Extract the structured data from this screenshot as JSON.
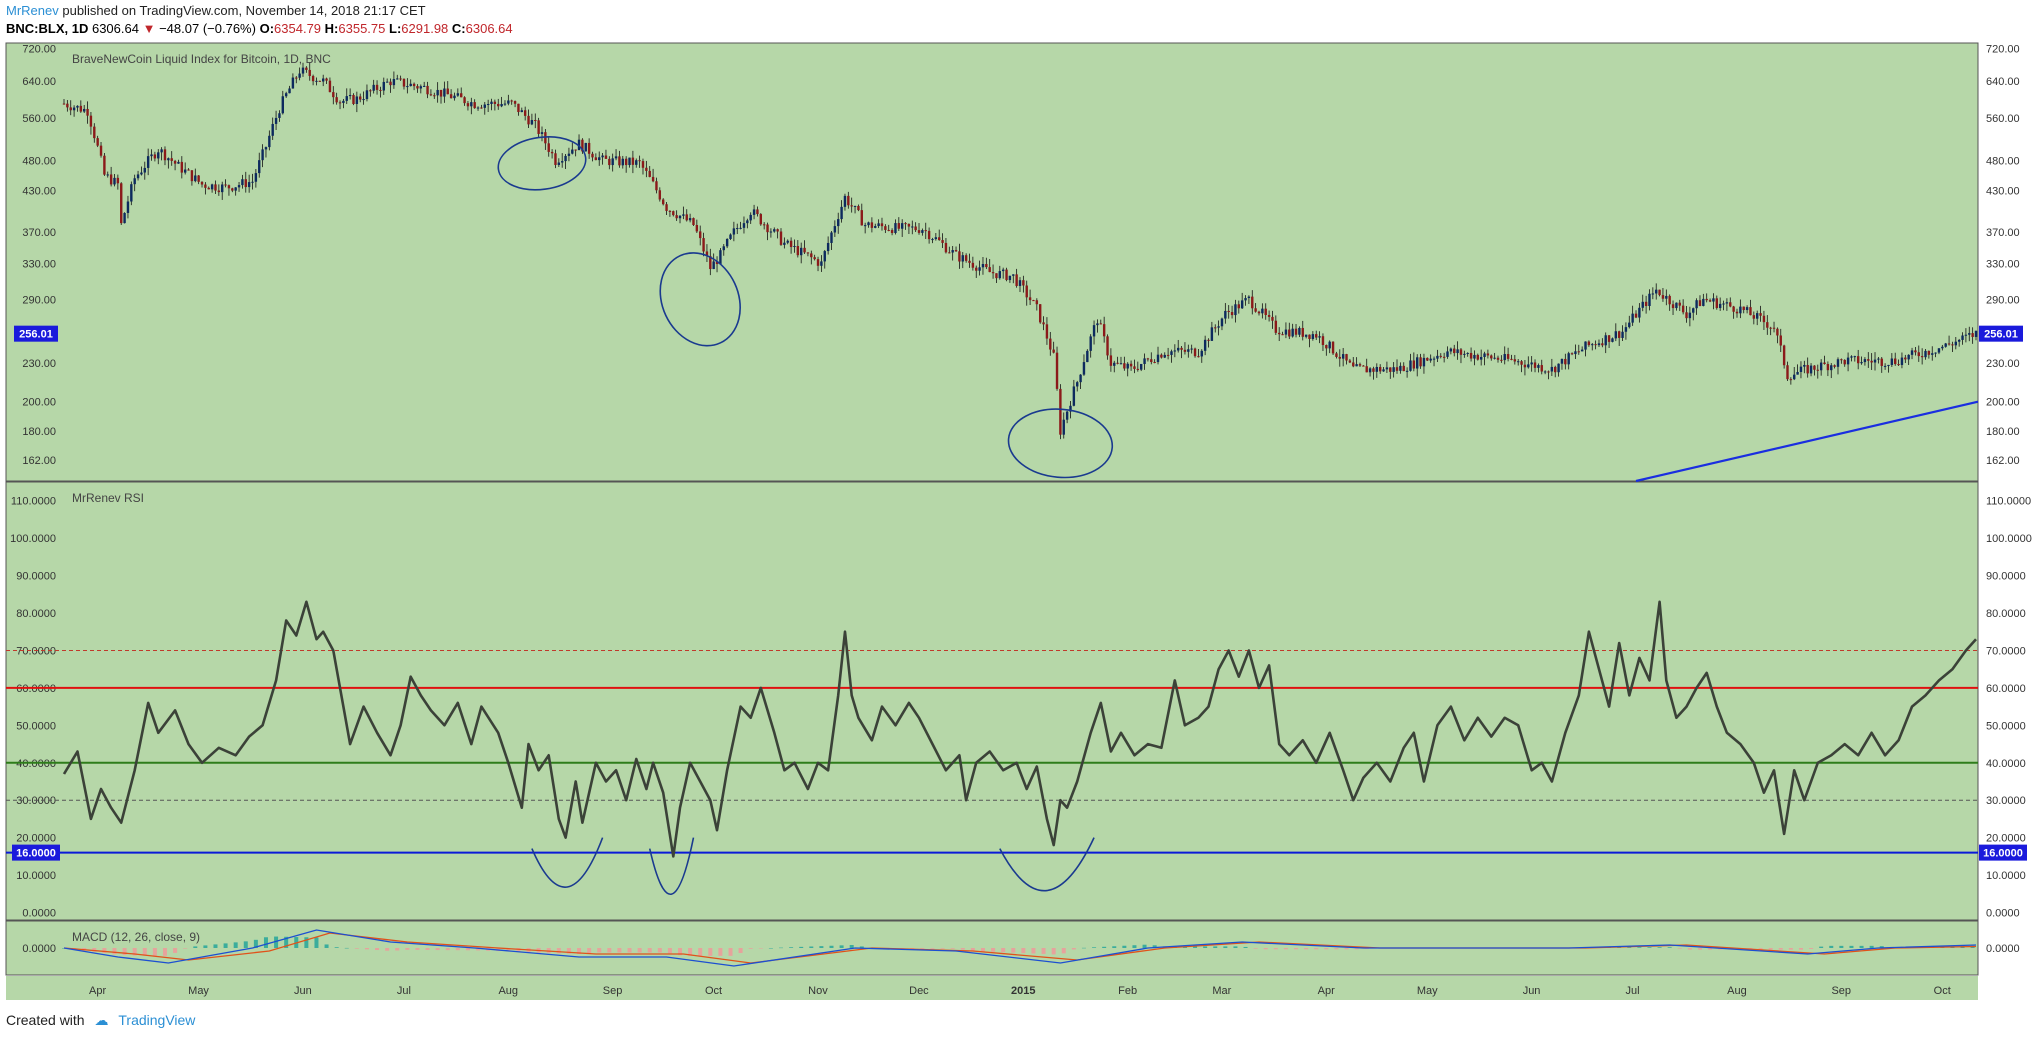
{
  "header": {
    "author": "MrRenev",
    "published": " published on TradingView.com, November 14, 2018 21:17 CET",
    "symbol": "BNC:BLX, 1D",
    "last": "6306.64",
    "change": "−48.07 (−0.76%)",
    "o_label": "O:",
    "o_value": "6354.79",
    "h_label": "H:",
    "h_value": "6355.75",
    "l_label": "L:",
    "l_value": "6291.98",
    "c_label": "C:",
    "c_value": "6306.64"
  },
  "footer": {
    "created": "Created with",
    "brand": "TradingView"
  },
  "colors": {
    "background": "#b6d7a8",
    "candle_up": "#0d2a5e",
    "candle_down": "#8b1a1a",
    "rsi_line": "#3b4238",
    "level_red": "#e01010",
    "level_green": "#2e7d1a",
    "level_blue": "#0a1ad8",
    "annotation": "#1a3a8f",
    "macd_line": "#1c4fd1",
    "signal_line": "#e0521a"
  },
  "chart_data": [
    {
      "type": "candlestick",
      "title": "BraveNewCoin Liquid Index for Bitcoin, 1D, BNC",
      "scale": "log",
      "ylim": [
        150,
        735
      ],
      "y_ticks": [
        "720.00",
        "640.00",
        "560.00",
        "480.00",
        "430.00",
        "370.00",
        "330.00",
        "290.00",
        "230.00",
        "200.00",
        "180.00",
        "162.00"
      ],
      "price_tag": "256.01",
      "x_ticks": [
        "Apr",
        "May",
        "Jun",
        "Jul",
        "Aug",
        "Sep",
        "Oct",
        "Nov",
        "Dec",
        "2015",
        "Feb",
        "Mar",
        "Apr",
        "May",
        "Jun",
        "Jul",
        "Aug",
        "Sep",
        "Oct"
      ],
      "x_date_range": [
        "2014-03-25",
        "2015-10-14"
      ],
      "close_path": [
        [
          "2014-03-25",
          590
        ],
        [
          "2014-04-01",
          575
        ],
        [
          "2014-04-06",
          455
        ],
        [
          "2014-04-10",
          440
        ],
        [
          "2014-04-11",
          380
        ],
        [
          "2014-04-15",
          450
        ],
        [
          "2014-04-22",
          500
        ],
        [
          "2014-04-28",
          470
        ],
        [
          "2014-05-05",
          440
        ],
        [
          "2014-05-12",
          435
        ],
        [
          "2014-05-20",
          445
        ],
        [
          "2014-05-24",
          505
        ],
        [
          "2014-05-28",
          580
        ],
        [
          "2014-06-03",
          665
        ],
        [
          "2014-06-10",
          640
        ],
        [
          "2014-06-15",
          595
        ],
        [
          "2014-06-20",
          600
        ],
        [
          "2014-06-30",
          640
        ],
        [
          "2014-07-10",
          625
        ],
        [
          "2014-07-25",
          590
        ],
        [
          "2014-08-05",
          590
        ],
        [
          "2014-08-12",
          545
        ],
        [
          "2014-08-18",
          480
        ],
        [
          "2014-08-25",
          510
        ],
        [
          "2014-09-01",
          480
        ],
        [
          "2014-09-12",
          475
        ],
        [
          "2014-09-20",
          405
        ],
        [
          "2014-09-28",
          380
        ],
        [
          "2014-10-03",
          325
        ],
        [
          "2014-10-06",
          340
        ],
        [
          "2014-10-10",
          370
        ],
        [
          "2014-10-15",
          400
        ],
        [
          "2014-10-25",
          355
        ],
        [
          "2014-11-05",
          330
        ],
        [
          "2014-11-12",
          420
        ],
        [
          "2014-11-18",
          380
        ],
        [
          "2014-11-28",
          375
        ],
        [
          "2014-12-05",
          375
        ],
        [
          "2014-12-15",
          340
        ],
        [
          "2014-12-25",
          320
        ],
        [
          "2015-01-01",
          315
        ],
        [
          "2015-01-08",
          280
        ],
        [
          "2015-01-13",
          235
        ],
        [
          "2015-01-15",
          180
        ],
        [
          "2015-01-20",
          215
        ],
        [
          "2015-01-26",
          270
        ],
        [
          "2015-01-30",
          230
        ],
        [
          "2015-02-05",
          225
        ],
        [
          "2015-02-15",
          240
        ],
        [
          "2015-02-25",
          240
        ],
        [
          "2015-03-05",
          275
        ],
        [
          "2015-03-12",
          290
        ],
        [
          "2015-03-20",
          260
        ],
        [
          "2015-04-01",
          255
        ],
        [
          "2015-04-12",
          225
        ],
        [
          "2015-04-25",
          225
        ],
        [
          "2015-05-10",
          240
        ],
        [
          "2015-05-30",
          232
        ],
        [
          "2015-06-10",
          225
        ],
        [
          "2015-06-20",
          244
        ],
        [
          "2015-07-01",
          258
        ],
        [
          "2015-07-11",
          300
        ],
        [
          "2015-07-20",
          275
        ],
        [
          "2015-07-25",
          290
        ],
        [
          "2015-08-05",
          280
        ],
        [
          "2015-08-15",
          262
        ],
        [
          "2015-08-19",
          220
        ],
        [
          "2015-08-25",
          225
        ],
        [
          "2015-09-05",
          232
        ],
        [
          "2015-09-20",
          232
        ],
        [
          "2015-10-05",
          245
        ],
        [
          "2015-10-14",
          256
        ]
      ]
    },
    {
      "type": "line",
      "title": "MrRenev RSI",
      "ylim": [
        -2,
        115
      ],
      "y_ticks": [
        "110.0000",
        "100.0000",
        "90.0000",
        "80.0000",
        "70.0000",
        "60.0000",
        "50.0000",
        "40.0000",
        "30.0000",
        "20.0000",
        "10.0000",
        "0.0000"
      ],
      "levels": [
        {
          "value": 70,
          "style": "dashed",
          "color": "#c0392b"
        },
        {
          "value": 60,
          "style": "solid",
          "color": "#e01010"
        },
        {
          "value": 40,
          "style": "solid",
          "color": "#2e7d1a"
        },
        {
          "value": 30,
          "style": "dashed",
          "color": "#555555"
        },
        {
          "value": 16,
          "style": "solid",
          "color": "#0a1ad8",
          "tag": "16.0000"
        }
      ],
      "path": [
        [
          "2014-03-25",
          37
        ],
        [
          "2014-03-29",
          43
        ],
        [
          "2014-04-02",
          25
        ],
        [
          "2014-04-05",
          33
        ],
        [
          "2014-04-08",
          28
        ],
        [
          "2014-04-11",
          24
        ],
        [
          "2014-04-15",
          38
        ],
        [
          "2014-04-19",
          56
        ],
        [
          "2014-04-22",
          48
        ],
        [
          "2014-04-27",
          54
        ],
        [
          "2014-05-01",
          45
        ],
        [
          "2014-05-05",
          40
        ],
        [
          "2014-05-10",
          44
        ],
        [
          "2014-05-15",
          42
        ],
        [
          "2014-05-19",
          47
        ],
        [
          "2014-05-23",
          50
        ],
        [
          "2014-05-27",
          62
        ],
        [
          "2014-05-30",
          78
        ],
        [
          "2014-06-02",
          74
        ],
        [
          "2014-06-05",
          83
        ],
        [
          "2014-06-08",
          73
        ],
        [
          "2014-06-10",
          75
        ],
        [
          "2014-06-13",
          70
        ],
        [
          "2014-06-16",
          55
        ],
        [
          "2014-06-18",
          45
        ],
        [
          "2014-06-22",
          55
        ],
        [
          "2014-06-26",
          48
        ],
        [
          "2014-06-30",
          42
        ],
        [
          "2014-07-03",
          50
        ],
        [
          "2014-07-06",
          63
        ],
        [
          "2014-07-09",
          58
        ],
        [
          "2014-07-12",
          54
        ],
        [
          "2014-07-16",
          50
        ],
        [
          "2014-07-20",
          56
        ],
        [
          "2014-07-24",
          45
        ],
        [
          "2014-07-27",
          55
        ],
        [
          "2014-08-01",
          48
        ],
        [
          "2014-08-04",
          40
        ],
        [
          "2014-08-08",
          28
        ],
        [
          "2014-08-10",
          45
        ],
        [
          "2014-08-13",
          38
        ],
        [
          "2014-08-16",
          42
        ],
        [
          "2014-08-19",
          25
        ],
        [
          "2014-08-21",
          20
        ],
        [
          "2014-08-24",
          35
        ],
        [
          "2014-08-26",
          24
        ],
        [
          "2014-08-30",
          40
        ],
        [
          "2014-09-02",
          35
        ],
        [
          "2014-09-05",
          38
        ],
        [
          "2014-09-08",
          30
        ],
        [
          "2014-09-11",
          41
        ],
        [
          "2014-09-14",
          33
        ],
        [
          "2014-09-16",
          40
        ],
        [
          "2014-09-19",
          32
        ],
        [
          "2014-09-22",
          15
        ],
        [
          "2014-09-24",
          28
        ],
        [
          "2014-09-27",
          40
        ],
        [
          "2014-09-30",
          35
        ],
        [
          "2014-10-03",
          30
        ],
        [
          "2014-10-05",
          22
        ],
        [
          "2014-10-08",
          38
        ],
        [
          "2014-10-12",
          55
        ],
        [
          "2014-10-15",
          52
        ],
        [
          "2014-10-18",
          60
        ],
        [
          "2014-10-22",
          48
        ],
        [
          "2014-10-25",
          38
        ],
        [
          "2014-10-28",
          40
        ],
        [
          "2014-11-01",
          33
        ],
        [
          "2014-11-04",
          40
        ],
        [
          "2014-11-07",
          38
        ],
        [
          "2014-11-10",
          58
        ],
        [
          "2014-11-12",
          75
        ],
        [
          "2014-11-14",
          58
        ],
        [
          "2014-11-16",
          52
        ],
        [
          "2014-11-20",
          46
        ],
        [
          "2014-11-23",
          55
        ],
        [
          "2014-11-27",
          50
        ],
        [
          "2014-12-01",
          56
        ],
        [
          "2014-12-04",
          52
        ],
        [
          "2014-12-08",
          45
        ],
        [
          "2014-12-12",
          38
        ],
        [
          "2014-12-16",
          42
        ],
        [
          "2014-12-18",
          30
        ],
        [
          "2014-12-21",
          40
        ],
        [
          "2014-12-25",
          43
        ],
        [
          "2014-12-29",
          38
        ],
        [
          "2015-01-02",
          40
        ],
        [
          "2015-01-05",
          33
        ],
        [
          "2015-01-08",
          39
        ],
        [
          "2015-01-11",
          25
        ],
        [
          "2015-01-13",
          18
        ],
        [
          "2015-01-15",
          30
        ],
        [
          "2015-01-17",
          28
        ],
        [
          "2015-01-20",
          35
        ],
        [
          "2015-01-24",
          48
        ],
        [
          "2015-01-27",
          56
        ],
        [
          "2015-01-30",
          43
        ],
        [
          "2015-02-02",
          48
        ],
        [
          "2015-02-06",
          42
        ],
        [
          "2015-02-10",
          45
        ],
        [
          "2015-02-14",
          44
        ],
        [
          "2015-02-18",
          62
        ],
        [
          "2015-02-21",
          50
        ],
        [
          "2015-02-25",
          52
        ],
        [
          "2015-02-28",
          55
        ],
        [
          "2015-03-03",
          65
        ],
        [
          "2015-03-06",
          70
        ],
        [
          "2015-03-09",
          63
        ],
        [
          "2015-03-12",
          70
        ],
        [
          "2015-03-15",
          60
        ],
        [
          "2015-03-18",
          66
        ],
        [
          "2015-03-21",
          45
        ],
        [
          "2015-03-24",
          42
        ],
        [
          "2015-03-28",
          46
        ],
        [
          "2015-04-01",
          40
        ],
        [
          "2015-04-05",
          48
        ],
        [
          "2015-04-09",
          38
        ],
        [
          "2015-04-12",
          30
        ],
        [
          "2015-04-15",
          36
        ],
        [
          "2015-04-19",
          40
        ],
        [
          "2015-04-23",
          35
        ],
        [
          "2015-04-27",
          44
        ],
        [
          "2015-04-30",
          48
        ],
        [
          "2015-05-03",
          35
        ],
        [
          "2015-05-07",
          50
        ],
        [
          "2015-05-11",
          55
        ],
        [
          "2015-05-15",
          46
        ],
        [
          "2015-05-19",
          52
        ],
        [
          "2015-05-23",
          47
        ],
        [
          "2015-05-27",
          52
        ],
        [
          "2015-05-31",
          50
        ],
        [
          "2015-06-04",
          38
        ],
        [
          "2015-06-07",
          40
        ],
        [
          "2015-06-10",
          35
        ],
        [
          "2015-06-14",
          48
        ],
        [
          "2015-06-18",
          58
        ],
        [
          "2015-06-21",
          75
        ],
        [
          "2015-06-24",
          65
        ],
        [
          "2015-06-27",
          55
        ],
        [
          "2015-06-30",
          72
        ],
        [
          "2015-07-03",
          58
        ],
        [
          "2015-07-06",
          68
        ],
        [
          "2015-07-09",
          62
        ],
        [
          "2015-07-12",
          83
        ],
        [
          "2015-07-14",
          62
        ],
        [
          "2015-07-17",
          52
        ],
        [
          "2015-07-20",
          55
        ],
        [
          "2015-07-23",
          60
        ],
        [
          "2015-07-26",
          64
        ],
        [
          "2015-07-29",
          55
        ],
        [
          "2015-08-01",
          48
        ],
        [
          "2015-08-05",
          45
        ],
        [
          "2015-08-09",
          40
        ],
        [
          "2015-08-12",
          32
        ],
        [
          "2015-08-15",
          38
        ],
        [
          "2015-08-18",
          21
        ],
        [
          "2015-08-21",
          38
        ],
        [
          "2015-08-24",
          30
        ],
        [
          "2015-08-28",
          40
        ],
        [
          "2015-09-01",
          42
        ],
        [
          "2015-09-05",
          45
        ],
        [
          "2015-09-09",
          42
        ],
        [
          "2015-09-13",
          48
        ],
        [
          "2015-09-17",
          42
        ],
        [
          "2015-09-21",
          46
        ],
        [
          "2015-09-25",
          55
        ],
        [
          "2015-09-29",
          58
        ],
        [
          "2015-10-03",
          62
        ],
        [
          "2015-10-07",
          65
        ],
        [
          "2015-10-11",
          70
        ],
        [
          "2015-10-14",
          73
        ]
      ]
    },
    {
      "type": "area",
      "title": "MACD (12, 26, close, 9)",
      "y_ticks": [
        "0.0000"
      ],
      "ylim": [
        -9,
        9
      ],
      "macd": [
        [
          "2014-03-25",
          0
        ],
        [
          "2014-04-10",
          -3
        ],
        [
          "2014-04-25",
          -5
        ],
        [
          "2014-05-20",
          0
        ],
        [
          "2014-06-08",
          6
        ],
        [
          "2014-06-30",
          2
        ],
        [
          "2014-07-25",
          0
        ],
        [
          "2014-08-25",
          -3
        ],
        [
          "2014-09-20",
          -3
        ],
        [
          "2014-10-10",
          -6
        ],
        [
          "2014-11-15",
          0
        ],
        [
          "2014-12-15",
          -1
        ],
        [
          "2015-01-15",
          -5
        ],
        [
          "2015-02-10",
          0
        ],
        [
          "2015-03-10",
          2
        ],
        [
          "2015-04-15",
          0
        ],
        [
          "2015-06-15",
          0
        ],
        [
          "2015-07-15",
          1
        ],
        [
          "2015-08-25",
          -2
        ],
        [
          "2015-09-15",
          0
        ],
        [
          "2015-10-14",
          1
        ]
      ],
      "signal": [
        [
          "2014-03-25",
          0
        ],
        [
          "2014-04-15",
          -2
        ],
        [
          "2014-05-01",
          -4
        ],
        [
          "2014-05-25",
          -1
        ],
        [
          "2014-06-12",
          5
        ],
        [
          "2014-07-05",
          2
        ],
        [
          "2014-08-01",
          0
        ],
        [
          "2014-08-30",
          -2
        ],
        [
          "2014-09-25",
          -2
        ],
        [
          "2014-10-15",
          -5
        ],
        [
          "2014-11-20",
          0
        ],
        [
          "2014-12-20",
          -1
        ],
        [
          "2015-01-20",
          -4
        ],
        [
          "2015-02-15",
          0
        ],
        [
          "2015-03-15",
          2
        ],
        [
          "2015-04-20",
          0
        ],
        [
          "2015-06-20",
          0
        ],
        [
          "2015-07-20",
          1
        ],
        [
          "2015-08-30",
          -2
        ],
        [
          "2015-09-20",
          0
        ],
        [
          "2015-10-14",
          0.5
        ]
      ]
    }
  ]
}
